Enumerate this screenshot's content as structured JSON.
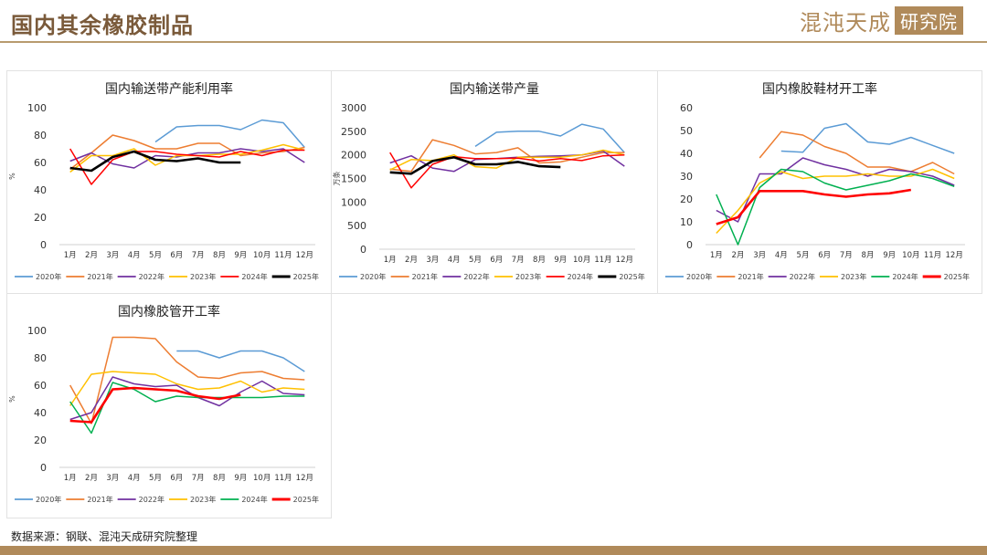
{
  "header": {
    "title": "国内其余橡胶制品"
  },
  "brand": {
    "name": "混沌天成",
    "box": "研究院"
  },
  "source": "数据来源：钢联、混沌天成研究院整理",
  "colors": {
    "2020年": "#5b9bd5",
    "2021年": "#ed7d31",
    "2022年": "#7030a0",
    "2023年": "#ffc000",
    "2024年": "#00b050",
    "2025年": "#000000"
  },
  "chart_data": [
    {
      "type": "line",
      "title": "国内输送带产能利用率",
      "ylabel": "%",
      "ylim": [
        0,
        100
      ],
      "yticks": [
        0,
        20,
        40,
        60,
        80,
        100
      ],
      "categories": [
        "1月",
        "2月",
        "3月",
        "4月",
        "5月",
        "6月",
        "7月",
        "8月",
        "9月",
        "10月",
        "11月",
        "12月"
      ],
      "series": [
        {
          "name": "2020年",
          "color": "#5b9bd5",
          "values": [
            null,
            null,
            null,
            null,
            75,
            86,
            87,
            87,
            84,
            91,
            89,
            71
          ]
        },
        {
          "name": "2021年",
          "color": "#ed7d31",
          "values": [
            55,
            67,
            80,
            76,
            70,
            70,
            74,
            74,
            65,
            67,
            68,
            71
          ]
        },
        {
          "name": "2022年",
          "color": "#7030a0",
          "values": [
            61,
            67,
            59,
            56,
            65,
            64,
            67,
            67,
            70,
            68,
            70,
            60
          ]
        },
        {
          "name": "2023年",
          "color": "#ffc000",
          "values": [
            53,
            65,
            65,
            70,
            58,
            65,
            65,
            66,
            66,
            69,
            73,
            69
          ]
        },
        {
          "name": "2024年",
          "color": "#ff0000",
          "values": [
            70,
            44,
            62,
            68,
            68,
            66,
            65,
            64,
            68,
            65,
            69,
            69
          ]
        },
        {
          "name": "2025年",
          "color": "#000000",
          "values": [
            56,
            54,
            64,
            68,
            62,
            61,
            63,
            60,
            60,
            null,
            null,
            null
          ]
        }
      ]
    },
    {
      "type": "line",
      "title": "国内输送带产量",
      "ylabel": "万条",
      "ylim": [
        0,
        3000
      ],
      "yticks": [
        0,
        500,
        1000,
        1500,
        2000,
        2500,
        3000
      ],
      "categories": [
        "1月",
        "2月",
        "3月",
        "4月",
        "5月",
        "6月",
        "7月",
        "8月",
        "9月",
        "10月",
        "11月",
        "12月"
      ],
      "series": [
        {
          "name": "2020年",
          "color": "#5b9bd5",
          "values": [
            null,
            null,
            null,
            null,
            2180,
            2480,
            2500,
            2500,
            2400,
            2650,
            2550,
            2050
          ]
        },
        {
          "name": "2021年",
          "color": "#ed7d31",
          "values": [
            1700,
            1650,
            2320,
            2200,
            2020,
            2050,
            2150,
            1830,
            1850,
            1950,
            2050,
            2050
          ]
        },
        {
          "name": "2022年",
          "color": "#7030a0",
          "values": [
            1830,
            1980,
            1720,
            1650,
            1900,
            1920,
            1950,
            1970,
            1980,
            2000,
            2080,
            1760
          ]
        },
        {
          "name": "2023年",
          "color": "#ffc000",
          "values": [
            1680,
            1900,
            1880,
            2000,
            1750,
            1720,
            1950,
            1950,
            1950,
            2000,
            2100,
            2000
          ]
        },
        {
          "name": "2024年",
          "color": "#ff0000",
          "values": [
            2050,
            1300,
            1800,
            1960,
            1920,
            1920,
            1930,
            1870,
            1920,
            1880,
            1980,
            2000
          ]
        },
        {
          "name": "2025年",
          "color": "#000000",
          "values": [
            1630,
            1600,
            1870,
            1950,
            1800,
            1800,
            1850,
            1760,
            1740,
            null,
            null,
            null
          ]
        }
      ]
    },
    {
      "type": "line",
      "title": "国内橡胶鞋材开工率",
      "ylabel": "",
      "ylim": [
        0,
        60
      ],
      "yticks": [
        0,
        10,
        20,
        30,
        40,
        50,
        60
      ],
      "categories": [
        "1月",
        "2月",
        "3月",
        "4月",
        "5月",
        "6月",
        "7月",
        "8月",
        "9月",
        "10月",
        "11月",
        "12月"
      ],
      "series": [
        {
          "name": "2020年",
          "color": "#5b9bd5",
          "values": [
            null,
            null,
            null,
            41,
            40.5,
            51,
            53,
            45,
            44,
            47,
            43.5,
            40
          ]
        },
        {
          "name": "2021年",
          "color": "#ed7d31",
          "values": [
            null,
            null,
            38,
            49.5,
            48,
            43,
            40,
            34,
            34,
            32,
            36,
            31
          ]
        },
        {
          "name": "2022年",
          "color": "#7030a0",
          "values": [
            15,
            10,
            31,
            31,
            38,
            35,
            33,
            30,
            33,
            32,
            30,
            26
          ]
        },
        {
          "name": "2023年",
          "color": "#ffc000",
          "values": [
            5,
            15,
            27,
            32,
            29,
            30,
            30,
            31,
            30,
            30,
            33,
            29
          ]
        },
        {
          "name": "2024年",
          "color": "#00b050",
          "values": [
            22,
            0,
            25,
            33,
            32,
            27,
            24,
            26,
            28,
            31,
            29,
            25.5
          ]
        },
        {
          "name": "2025年",
          "color": "#ff0000",
          "values": [
            9,
            12,
            23.5,
            23.5,
            23.5,
            22,
            21,
            22,
            22.5,
            24,
            null,
            null
          ]
        }
      ]
    },
    {
      "type": "line",
      "title": "国内橡胶管开工率",
      "ylabel": "%",
      "ylim": [
        0,
        100
      ],
      "yticks": [
        0,
        20,
        40,
        60,
        80,
        100
      ],
      "categories": [
        "1月",
        "2月",
        "3月",
        "4月",
        "5月",
        "6月",
        "7月",
        "8月",
        "9月",
        "10月",
        "11月",
        "12月"
      ],
      "series": [
        {
          "name": "2020年",
          "color": "#5b9bd5",
          "values": [
            null,
            null,
            null,
            null,
            null,
            85,
            85,
            80,
            85,
            85,
            80,
            70
          ]
        },
        {
          "name": "2021年",
          "color": "#ed7d31",
          "values": [
            60,
            32,
            95,
            95,
            94,
            77,
            66,
            65,
            69,
            70,
            65,
            64
          ]
        },
        {
          "name": "2022年",
          "color": "#7030a0",
          "values": [
            35,
            40,
            66,
            61,
            59,
            60,
            51,
            45,
            55,
            63,
            54,
            53
          ]
        },
        {
          "name": "2023年",
          "color": "#ffc000",
          "values": [
            45,
            68,
            70,
            69,
            68,
            61,
            57,
            58,
            63,
            55,
            58,
            57
          ]
        },
        {
          "name": "2024年",
          "color": "#00b050",
          "values": [
            48,
            25,
            62,
            57,
            48,
            52,
            51,
            51,
            51,
            51,
            52,
            52
          ]
        },
        {
          "name": "2025年",
          "color": "#ff0000",
          "values": [
            34,
            33,
            57,
            58,
            57,
            56,
            52,
            50,
            53,
            null,
            null,
            null
          ]
        }
      ]
    }
  ]
}
